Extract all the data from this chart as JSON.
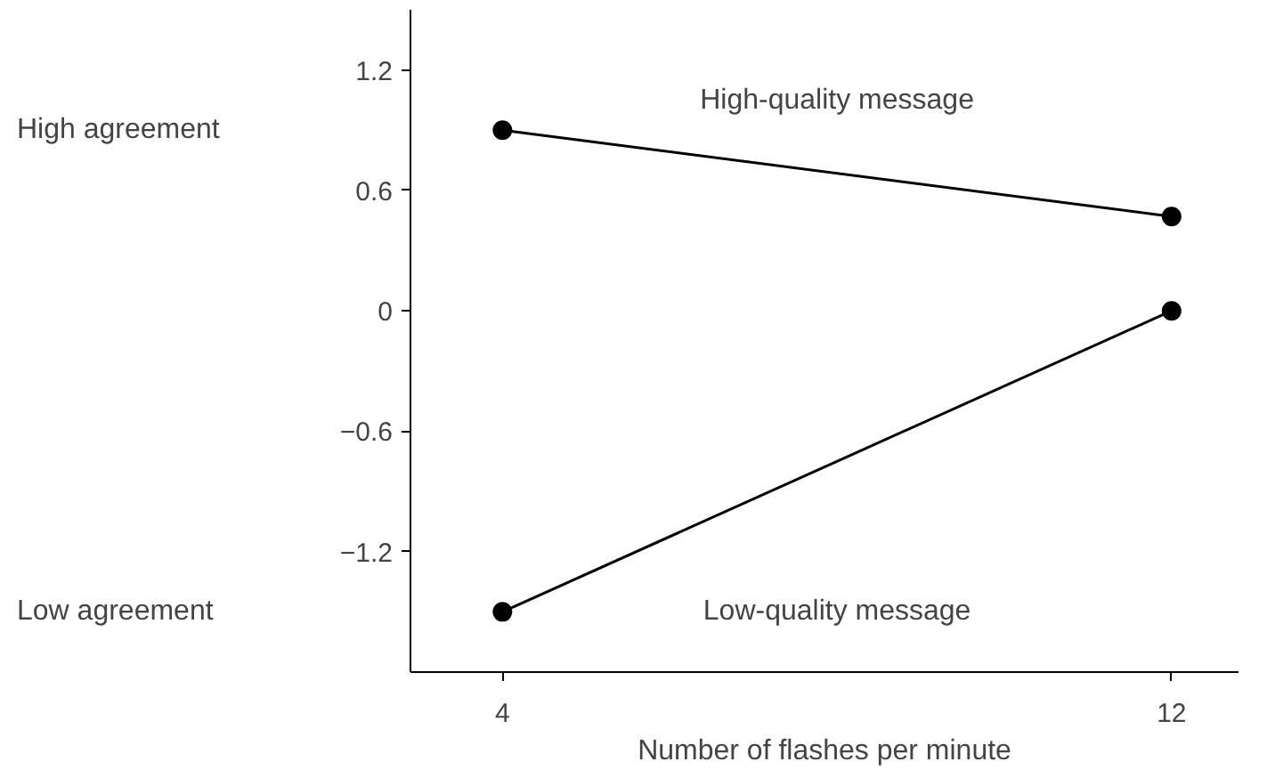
{
  "chart_data": {
    "type": "line",
    "xlabel": "Number of flashes per minute",
    "x": [
      4,
      12
    ],
    "series": [
      {
        "name": "High-quality message",
        "color": "#000000",
        "values": [
          0.9,
          0.47
        ]
      },
      {
        "name": "Low-quality message",
        "color": "#000000",
        "values": [
          -1.5,
          0
        ]
      }
    ],
    "xlim": [
      2.9,
      12.8
    ],
    "ylim": [
      -1.8,
      1.5
    ],
    "xticks": [
      4,
      12
    ],
    "yticks": [
      1.2,
      0.6,
      0,
      {
        "value": -0.6,
        "label": "−0.6"
      },
      {
        "value": -1.2,
        "label": "−1.2"
      }
    ],
    "annotations": [
      "High agreement",
      "Low agreement"
    ],
    "marker": "circle",
    "line_style": "solid",
    "grid": false,
    "legend": false
  }
}
